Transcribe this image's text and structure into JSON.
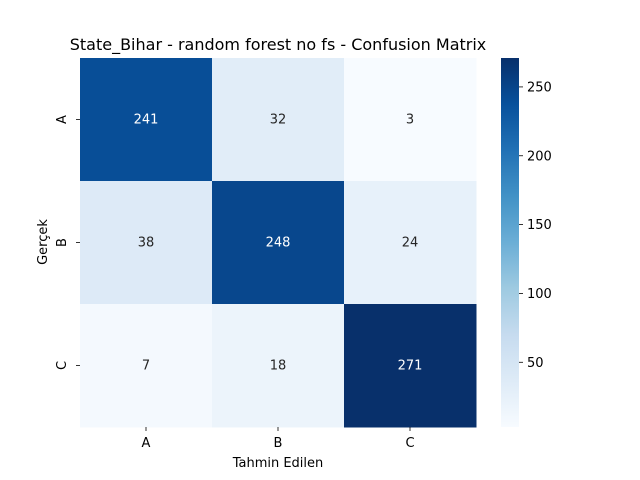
{
  "chart_data": {
    "type": "heatmap",
    "title": "State_Bihar - random forest no fs - Confusion Matrix",
    "xlabel": "Tahmin Edilen",
    "ylabel": "Gerçek",
    "x_categories": [
      "A",
      "B",
      "C"
    ],
    "y_categories": [
      "A",
      "B",
      "C"
    ],
    "matrix": [
      [
        241,
        32,
        3
      ],
      [
        38,
        248,
        24
      ],
      [
        7,
        18,
        271
      ]
    ],
    "colormap": "Blues",
    "color_range": [
      3,
      271
    ],
    "colorbar_ticks": [
      50,
      100,
      150,
      200,
      250
    ],
    "annotate_cells": true,
    "grid": false
  }
}
